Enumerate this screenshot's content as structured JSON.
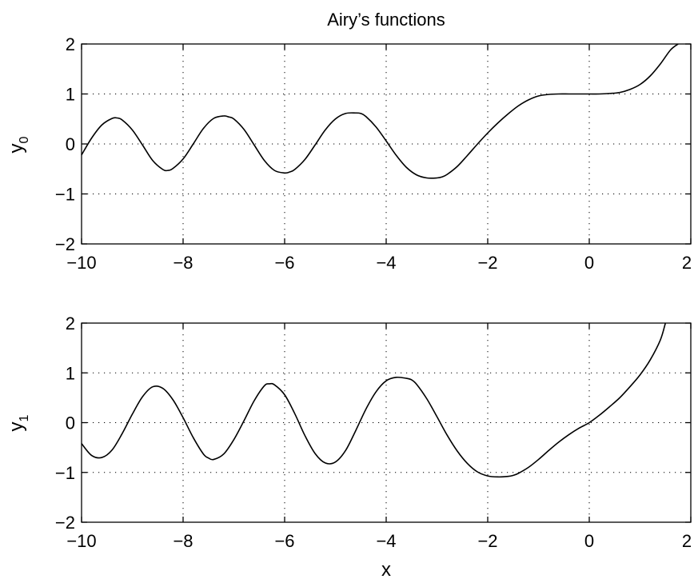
{
  "chart_data": [
    {
      "type": "line",
      "title": "Airy’s functions",
      "xlabel": "",
      "ylabel": "y",
      "ylabel_subscript": "0",
      "xlim": [
        -10,
        2
      ],
      "ylim": [
        -2,
        2
      ],
      "xticks": [
        -10,
        -8,
        -6,
        -4,
        -2,
        0,
        2
      ],
      "yticks": [
        -2,
        -1,
        0,
        1,
        2
      ],
      "xtick_labels": [
        "−10",
        "−8",
        "−6",
        "−4",
        "−2",
        "0",
        "2"
      ],
      "ytick_labels": [
        "−2",
        "−1",
        "0",
        "1",
        "2"
      ],
      "grid": true,
      "line_color": "#000000",
      "series": [
        {
          "x": [
            -10,
            -9.8,
            -9.6,
            -9.4,
            -9.3,
            -9.2,
            -9.0,
            -8.8,
            -8.6,
            -8.4,
            -8.3,
            -8.2,
            -8.0,
            -7.8,
            -7.6,
            -7.4,
            -7.2,
            -7.1,
            -7.0,
            -6.8,
            -6.6,
            -6.4,
            -6.2,
            -6.0,
            -5.9,
            -5.8,
            -5.6,
            -5.4,
            -5.2,
            -5.0,
            -4.8,
            -4.6,
            -4.5,
            -4.4,
            -4.2,
            -4.0,
            -3.8,
            -3.6,
            -3.4,
            -3.2,
            -3.0,
            -2.9,
            -2.8,
            -2.6,
            -2.4,
            -2.2,
            -2.0,
            -1.8,
            -1.6,
            -1.4,
            -1.2,
            -1.0,
            -0.8,
            -0.6,
            -0.4,
            -0.2,
            0.0,
            0.2,
            0.4,
            0.6,
            0.8,
            1.0,
            1.2,
            1.4,
            1.6,
            1.75
          ],
          "y": [
            -0.22,
            0.12,
            0.38,
            0.51,
            0.52,
            0.48,
            0.28,
            -0.02,
            -0.33,
            -0.51,
            -0.53,
            -0.49,
            -0.3,
            0.0,
            0.31,
            0.51,
            0.56,
            0.54,
            0.5,
            0.29,
            -0.02,
            -0.33,
            -0.53,
            -0.58,
            -0.56,
            -0.51,
            -0.31,
            -0.02,
            0.28,
            0.5,
            0.61,
            0.62,
            0.61,
            0.55,
            0.34,
            0.06,
            -0.23,
            -0.47,
            -0.62,
            -0.68,
            -0.68,
            -0.66,
            -0.61,
            -0.45,
            -0.23,
            0.0,
            0.22,
            0.42,
            0.6,
            0.76,
            0.88,
            0.96,
            0.99,
            1.0,
            1.0,
            1.0,
            1.0,
            1.0,
            1.01,
            1.03,
            1.09,
            1.19,
            1.36,
            1.6,
            1.88,
            2.0
          ]
        }
      ]
    },
    {
      "type": "line",
      "title": "",
      "xlabel": "x",
      "ylabel": "y",
      "ylabel_subscript": "1",
      "xlim": [
        -10,
        2
      ],
      "ylim": [
        -2,
        2
      ],
      "xticks": [
        -10,
        -8,
        -6,
        -4,
        -2,
        0,
        2
      ],
      "yticks": [
        -2,
        -1,
        0,
        1,
        2
      ],
      "xtick_labels": [
        "−10",
        "−8",
        "−6",
        "−4",
        "−2",
        "0",
        "2"
      ],
      "ytick_labels": [
        "−2",
        "−1",
        "0",
        "1",
        "2"
      ],
      "grid": true,
      "line_color": "#000000",
      "series": [
        {
          "x": [
            -10,
            -9.8,
            -9.6,
            -9.4,
            -9.2,
            -9.0,
            -8.8,
            -8.6,
            -8.4,
            -8.2,
            -8.0,
            -7.8,
            -7.6,
            -7.5,
            -7.4,
            -7.2,
            -7.0,
            -6.8,
            -6.6,
            -6.4,
            -6.3,
            -6.2,
            -6.0,
            -5.8,
            -5.6,
            -5.4,
            -5.2,
            -5.0,
            -4.8,
            -4.6,
            -4.4,
            -4.2,
            -4.0,
            -3.8,
            -3.6,
            -3.5,
            -3.4,
            -3.2,
            -3.0,
            -2.8,
            -2.6,
            -2.4,
            -2.2,
            -2.0,
            -1.8,
            -1.6,
            -1.5,
            -1.4,
            -1.2,
            -1.0,
            -0.8,
            -0.6,
            -0.4,
            -0.2,
            0.0,
            0.2,
            0.4,
            0.6,
            0.8,
            1.0,
            1.2,
            1.4,
            1.5
          ],
          "y": [
            -0.42,
            -0.66,
            -0.7,
            -0.55,
            -0.22,
            0.17,
            0.52,
            0.72,
            0.69,
            0.46,
            0.1,
            -0.3,
            -0.63,
            -0.71,
            -0.74,
            -0.63,
            -0.34,
            0.04,
            0.44,
            0.74,
            0.78,
            0.76,
            0.56,
            0.18,
            -0.26,
            -0.62,
            -0.81,
            -0.79,
            -0.56,
            -0.16,
            0.27,
            0.62,
            0.84,
            0.91,
            0.89,
            0.86,
            0.77,
            0.48,
            0.12,
            -0.25,
            -0.57,
            -0.82,
            -0.99,
            -1.07,
            -1.09,
            -1.08,
            -1.06,
            -1.02,
            -0.9,
            -0.74,
            -0.56,
            -0.39,
            -0.24,
            -0.11,
            0.0,
            0.15,
            0.32,
            0.5,
            0.72,
            0.96,
            1.26,
            1.66,
            2.0
          ]
        }
      ]
    }
  ]
}
